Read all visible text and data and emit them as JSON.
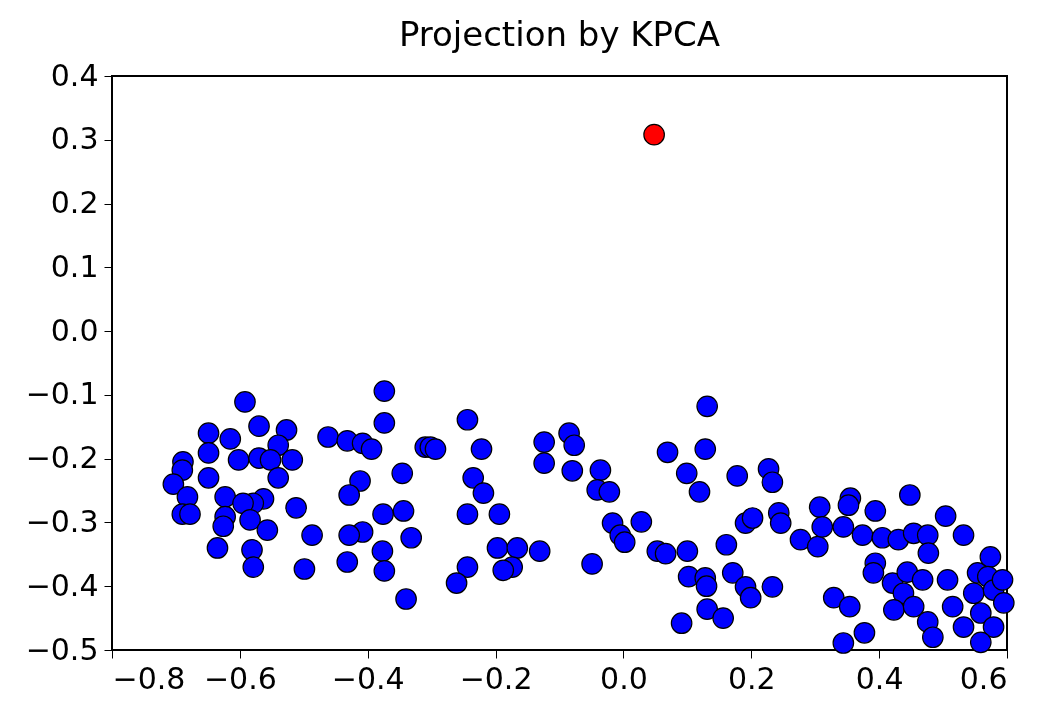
{
  "chart_data": {
    "type": "scatter",
    "title": "Projection by KPCA",
    "xlim": [
      -0.8,
      0.6
    ],
    "ylim": [
      -0.5,
      0.4
    ],
    "xticks": [
      -0.8,
      -0.6,
      -0.4,
      -0.2,
      {
        "value": 0,
        "label": "0.0"
      },
      0.2,
      0.4,
      0.6
    ],
    "yticks": [
      -0.5,
      -0.4,
      -0.3,
      -0.2,
      -0.1,
      {
        "value": 0,
        "label": "0.0"
      },
      0.1,
      0.2,
      0.3,
      0.4
    ],
    "grid": false,
    "marker": "circle",
    "series": [
      {
        "color": "#0000ff",
        "x": [
          -0.592,
          -0.57,
          -0.527,
          -0.649,
          -0.615,
          -0.54,
          -0.649,
          -0.689,
          -0.602,
          -0.57,
          -0.552,
          -0.518,
          -0.69,
          -0.649,
          -0.704,
          -0.54,
          -0.623,
          -0.682,
          -0.563,
          -0.579,
          -0.595,
          -0.69,
          -0.678,
          -0.623,
          -0.626,
          -0.584,
          -0.557,
          -0.635,
          -0.581,
          -0.579,
          -0.512,
          -0.487,
          -0.499,
          -0.462,
          -0.432,
          -0.408,
          -0.394,
          -0.374,
          -0.374,
          -0.31,
          -0.346,
          -0.412,
          -0.429,
          -0.376,
          -0.344,
          -0.408,
          -0.429,
          -0.332,
          -0.377,
          -0.432,
          -0.374,
          -0.34,
          -0.244,
          -0.302,
          -0.294,
          -0.222,
          -0.235,
          -0.219,
          -0.244,
          -0.194,
          -0.244,
          -0.261,
          -0.197,
          -0.166,
          -0.131,
          -0.174,
          -0.188,
          -0.124,
          -0.085,
          -0.077,
          -0.124,
          -0.08,
          -0.036,
          -0.041,
          -0.022,
          -0.017,
          -0.005,
          0.002,
          0.028,
          -0.049,
          0.053,
          0.066,
          0.1,
          0.131,
          0.128,
          0.069,
          0.099,
          0.119,
          0.102,
          0.128,
          0.13,
          0.131,
          0.091,
          0.178,
          0.227,
          0.233,
          0.191,
          0.202,
          0.243,
          0.246,
          0.161,
          0.171,
          0.191,
          0.199,
          0.233,
          0.156,
          0.277,
          0.304,
          0.307,
          0.311,
          0.344,
          0.355,
          0.352,
          0.394,
          0.374,
          0.405,
          0.43,
          0.454,
          0.476,
          0.477,
          0.448,
          0.504,
          0.532,
          0.394,
          0.391,
          0.421,
          0.444,
          0.468,
          0.438,
          0.507,
          0.423,
          0.454,
          0.476,
          0.484,
          0.515,
          0.532,
          0.554,
          0.574,
          0.57,
          0.548,
          0.579,
          0.595,
          0.559,
          0.579,
          0.559,
          0.329,
          0.354,
          0.377,
          0.344,
          0.593
        ],
        "values": [
          -0.111,
          -0.149,
          -0.155,
          -0.16,
          -0.169,
          -0.179,
          -0.191,
          -0.205,
          -0.202,
          -0.199,
          -0.202,
          -0.202,
          -0.218,
          -0.23,
          -0.24,
          -0.23,
          -0.26,
          -0.26,
          -0.263,
          -0.27,
          -0.27,
          -0.287,
          -0.287,
          -0.291,
          -0.306,
          -0.296,
          -0.312,
          -0.34,
          -0.343,
          -0.37,
          -0.277,
          -0.32,
          -0.373,
          -0.166,
          -0.172,
          -0.176,
          -0.185,
          -0.094,
          -0.144,
          -0.182,
          -0.223,
          -0.235,
          -0.257,
          -0.287,
          -0.282,
          -0.315,
          -0.32,
          -0.324,
          -0.345,
          -0.362,
          -0.376,
          -0.42,
          -0.139,
          -0.182,
          -0.185,
          -0.185,
          -0.23,
          -0.254,
          -0.287,
          -0.287,
          -0.37,
          -0.395,
          -0.34,
          -0.34,
          -0.345,
          -0.37,
          -0.375,
          -0.174,
          -0.16,
          -0.179,
          -0.207,
          -0.219,
          -0.218,
          -0.249,
          -0.252,
          -0.301,
          -0.32,
          -0.331,
          -0.299,
          -0.365,
          -0.345,
          -0.349,
          -0.345,
          -0.118,
          -0.185,
          -0.19,
          -0.223,
          -0.252,
          -0.385,
          -0.387,
          -0.4,
          -0.436,
          -0.458,
          -0.227,
          -0.216,
          -0.237,
          -0.301,
          -0.293,
          -0.285,
          -0.301,
          -0.335,
          -0.379,
          -0.401,
          -0.418,
          -0.401,
          -0.45,
          -0.327,
          -0.338,
          -0.276,
          -0.307,
          -0.307,
          -0.262,
          -0.273,
          -0.282,
          -0.32,
          -0.324,
          -0.327,
          -0.317,
          -0.32,
          -0.348,
          -0.257,
          -0.29,
          -0.32,
          -0.364,
          -0.379,
          -0.395,
          -0.378,
          -0.39,
          -0.411,
          -0.39,
          -0.437,
          -0.432,
          -0.456,
          -0.48,
          -0.432,
          -0.464,
          -0.379,
          -0.354,
          -0.385,
          -0.411,
          -0.406,
          -0.426,
          -0.442,
          -0.464,
          -0.488,
          -0.418,
          -0.432,
          -0.473,
          -0.489,
          -0.39
        ]
      },
      {
        "color": "#ff0000",
        "x": [
          0.048
        ],
        "values": [
          0.308
        ]
      }
    ]
  }
}
